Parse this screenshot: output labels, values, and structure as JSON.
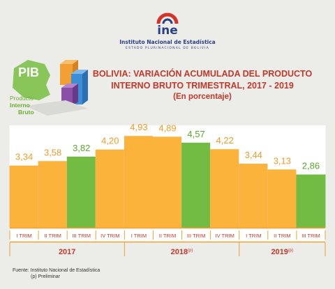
{
  "header": {
    "logo_word": "ine",
    "institution": "Instituto Nacional de Estadística",
    "state": "ESTADO PLURINACIONAL DE BOLIVIA"
  },
  "pib_badge": {
    "word": "PIB",
    "caption_line1": "Producto",
    "caption_line2": "Interno",
    "caption_line3": "Bruto"
  },
  "colors": {
    "orange": "#fbb33b",
    "green": "#72bc43",
    "track": "#ffffff",
    "label_orange": "#f39c2a",
    "label_green": "#5aa82e",
    "year_red": "#c4382a"
  },
  "chart_data": {
    "type": "bar",
    "title": "BOLIVIA: VARIACIÓN ACUMULADA DEL PRODUCTO INTERNO BRUTO TRIMESTRAL, 2017 - 2019",
    "title_line1": "BOLIVIA: VARIACIÓN ACUMULADA DEL PRODUCTO",
    "title_line2": "INTERNO BRUTO TRIMESTRAL, 2017 - 2019",
    "subtitle": "(En porcentaje)",
    "categories": [
      "I TRIM",
      "II TRIM",
      "III TRIM",
      "IV TRIM",
      "I TRIM",
      "II TRIM",
      "III TRIM",
      "IV TRIM",
      "I TRIM",
      "II TRIM",
      "III TRIM"
    ],
    "values": [
      3.34,
      3.58,
      3.82,
      4.2,
      4.93,
      4.89,
      4.57,
      4.22,
      3.44,
      3.13,
      2.86
    ],
    "value_labels": [
      "3,34",
      "3,58",
      "3,82",
      "4,20",
      "4,93",
      "4,89",
      "4,57",
      "4,22",
      "3,44",
      "3,13",
      "2,86"
    ],
    "bar_colors": [
      "orange",
      "orange",
      "green",
      "orange",
      "orange",
      "orange",
      "green",
      "orange",
      "orange",
      "orange",
      "green"
    ],
    "groups": [
      {
        "label": "2017",
        "sup": "",
        "count": 4
      },
      {
        "label": "2018",
        "sup": "(p)",
        "count": 4
      },
      {
        "label": "2019",
        "sup": "(p)",
        "count": 3
      }
    ],
    "ylim": [
      0,
      5.5
    ]
  },
  "footer": {
    "source": "Fuente: Instituto Nacional de Estadística",
    "note": "(p) Preliminar"
  }
}
